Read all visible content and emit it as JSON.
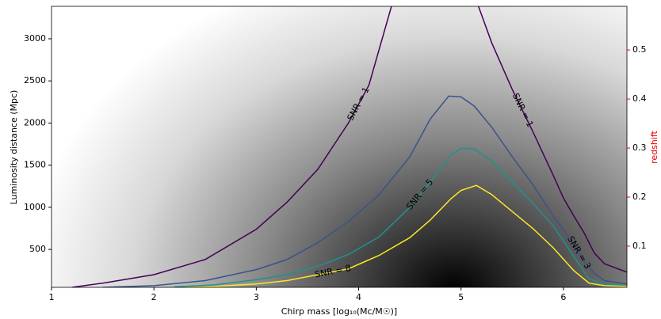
{
  "chart_data": {
    "type": "line",
    "x_label": "Chirp mass [log₁₀(Mc/M☉)]",
    "y_label": "Luminosity distance (Mpc)",
    "y2_label": "redshift",
    "xlim": [
      1,
      6.62
    ],
    "xticks": [
      1,
      2,
      3,
      4,
      5,
      6
    ],
    "ylim": [
      50,
      3385
    ],
    "yticks": [
      500,
      1000,
      1500,
      2000,
      2500,
      3000
    ],
    "y2lim": [
      0.016,
      0.589
    ],
    "y2ticks": [
      0.1,
      0.2,
      0.3,
      0.4,
      0.5
    ],
    "y2color": "#ee0000",
    "series": [
      {
        "name": "SNR = 1",
        "color": "#440154",
        "x": [
          1.2,
          1.5,
          2.0,
          2.5,
          3.0,
          3.3,
          3.6,
          3.9,
          4.1,
          4.32,
          null,
          5.17,
          5.3,
          5.5,
          5.7,
          5.9,
          6.0,
          6.1,
          6.2,
          6.3,
          6.4,
          6.62
        ],
        "values": [
          50,
          100,
          200,
          380,
          740,
          1060,
          1450,
          2000,
          2450,
          3385,
          null,
          3385,
          2950,
          2400,
          1900,
          1380,
          1110,
          900,
          700,
          460,
          330,
          230
        ]
      },
      {
        "name": "SNR = 3",
        "color": "#3b528b",
        "x": [
          1.5,
          2.0,
          2.5,
          3.0,
          3.3,
          3.6,
          3.9,
          4.2,
          4.5,
          4.7,
          4.88,
          5.0,
          5.13,
          5.3,
          5.5,
          5.7,
          5.9,
          6.1,
          6.2,
          6.3,
          6.4,
          6.62
        ],
        "values": [
          50,
          70,
          130,
          260,
          380,
          580,
          830,
          1150,
          1600,
          2050,
          2320,
          2310,
          2200,
          1950,
          1600,
          1270,
          900,
          560,
          360,
          220,
          130,
          90
        ]
      },
      {
        "name": "SNR = 5",
        "color": "#21918c",
        "x": [
          2.2,
          2.6,
          3.0,
          3.3,
          3.6,
          3.9,
          4.2,
          4.5,
          4.7,
          4.9,
          5.0,
          5.13,
          5.3,
          5.5,
          5.7,
          5.9,
          6.1,
          6.25,
          6.4,
          6.62
        ],
        "values": [
          55,
          80,
          140,
          200,
          300,
          440,
          650,
          1000,
          1300,
          1620,
          1700,
          1690,
          1550,
          1300,
          1050,
          780,
          420,
          150,
          90,
          70
        ]
      },
      {
        "name": "SNR = 8",
        "color": "#fde725",
        "x": [
          2.3,
          2.6,
          3.0,
          3.3,
          3.6,
          3.9,
          4.2,
          4.5,
          4.7,
          4.9,
          5.0,
          5.15,
          5.3,
          5.5,
          5.7,
          5.9,
          6.1,
          6.25,
          6.4,
          6.62
        ],
        "values": [
          50,
          60,
          90,
          130,
          200,
          270,
          430,
          640,
          850,
          1100,
          1200,
          1260,
          1150,
          950,
          750,
          520,
          250,
          100,
          70,
          60
        ]
      }
    ]
  }
}
